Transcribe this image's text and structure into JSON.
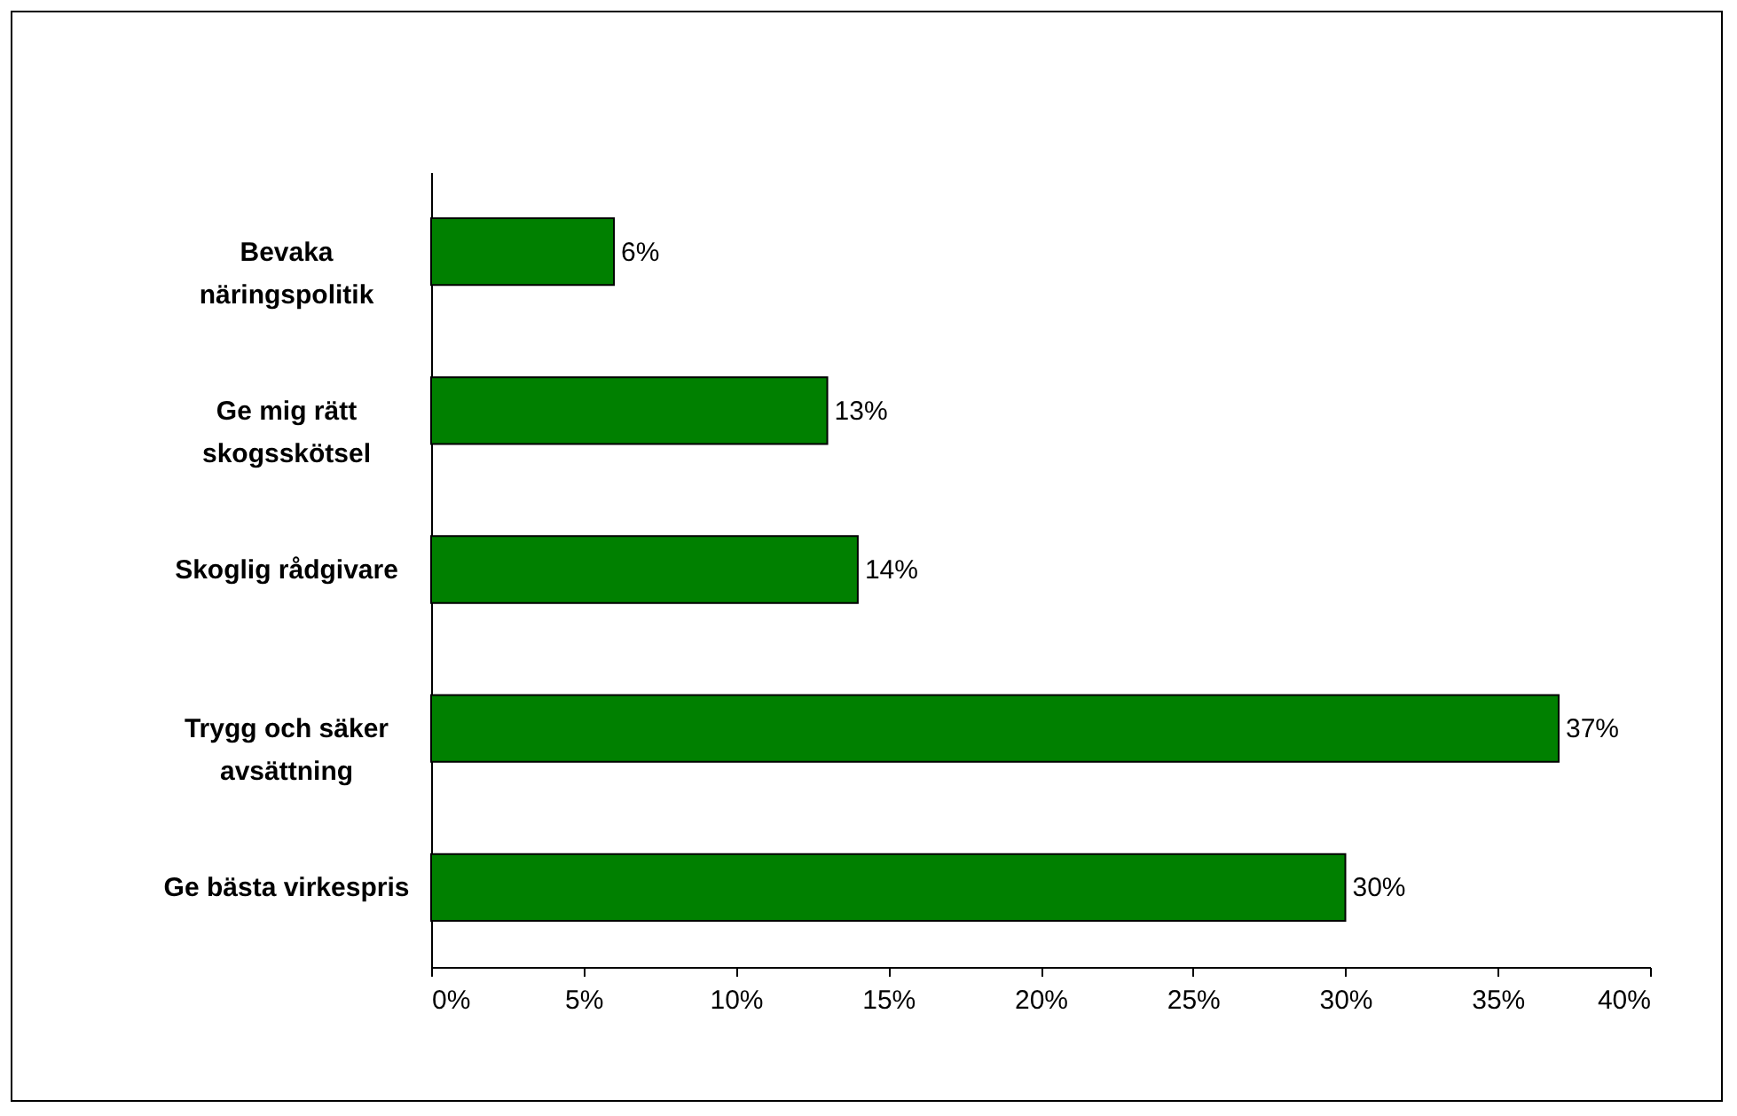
{
  "chart_data": {
    "type": "bar",
    "orientation": "horizontal",
    "categories": [
      "Bevaka näringspolitik",
      "Ge mig rätt skogsskötsel",
      "Skoglig rådgivare",
      "Trygg och säker avsättning",
      "Ge bästa virkespris"
    ],
    "values": [
      6,
      13,
      14,
      37,
      30
    ],
    "value_labels": [
      "6%",
      "13%",
      "14%",
      "37%",
      "30%"
    ],
    "color": "#008000",
    "xlim": [
      0,
      40
    ],
    "xticks": [
      {
        "value": 0,
        "label": "0%"
      },
      {
        "value": 5,
        "label": "5%"
      },
      {
        "value": 10,
        "label": "10%"
      },
      {
        "value": 15,
        "label": "15%"
      },
      {
        "value": 20,
        "label": "20%"
      },
      {
        "value": 25,
        "label": "25%"
      },
      {
        "value": 30,
        "label": "30%"
      },
      {
        "value": 35,
        "label": "35%"
      },
      {
        "value": 40,
        "label": "40%"
      }
    ],
    "grid": false
  }
}
